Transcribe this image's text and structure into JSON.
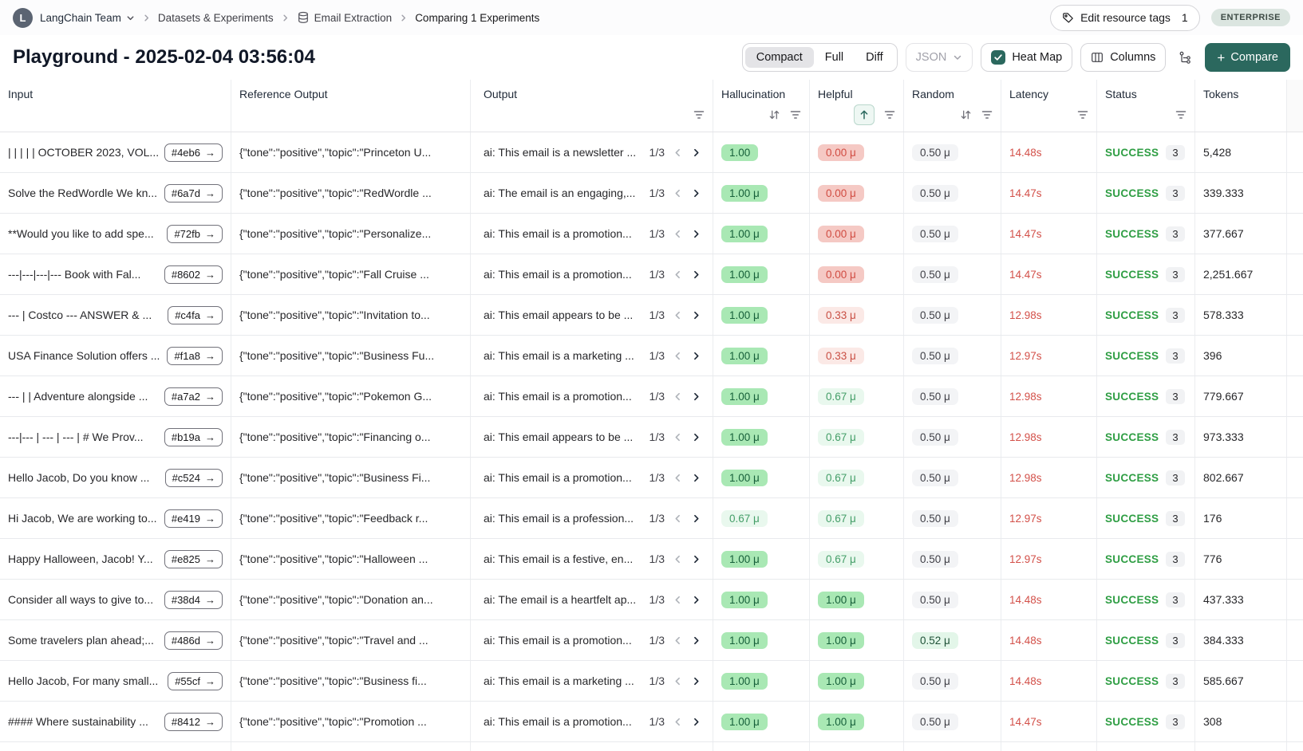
{
  "colors": {
    "accent_teal": "#2b685e",
    "success_green": "#2f9e44",
    "latency_red": "#d35049",
    "pill_green_strong_bg": "#a9e8b4",
    "pill_green_light_bg": "#e9f8ee",
    "pill_red_strong_bg": "#f5c9c4",
    "pill_red_light_bg": "#fbe9e6",
    "pill_gray_bg": "#f3f4f6",
    "plan_badge_bg": "#dbe5e0"
  },
  "breadcrumb": {
    "team": "LangChain Team",
    "avatar_letter": "L",
    "items": [
      "Datasets & Experiments",
      "Email Extraction",
      "Comparing 1 Experiments"
    ]
  },
  "topbar": {
    "edit_tags_label": "Edit resource tags",
    "edit_tags_count": "1",
    "plan_badge": "ENTERPRISE"
  },
  "header": {
    "title": "Playground - 2025-02-04 03:56:04",
    "view_modes": [
      "Compact",
      "Full",
      "Diff"
    ],
    "selected_view": "Compact",
    "json_label": "JSON",
    "heatmap_label": "Heat Map",
    "columns_label": "Columns",
    "compare_label": "Compare"
  },
  "table": {
    "columns": [
      {
        "key": "input",
        "label": "Input",
        "icons": []
      },
      {
        "key": "ref",
        "label": "Reference Output",
        "icons": []
      },
      {
        "key": "output",
        "label": "Output",
        "icons": [
          "filter"
        ]
      },
      {
        "key": "hall",
        "label": "Hallucination",
        "icons": [
          "sort",
          "filter"
        ]
      },
      {
        "key": "helpful",
        "label": "Helpful",
        "icons": [
          "sort-asc",
          "filter"
        ]
      },
      {
        "key": "random",
        "label": "Random",
        "icons": [
          "sort",
          "filter"
        ]
      },
      {
        "key": "latency",
        "label": "Latency",
        "icons": [
          "filter"
        ]
      },
      {
        "key": "status",
        "label": "Status",
        "icons": [
          "filter"
        ]
      },
      {
        "key": "tokens",
        "label": "Tokens",
        "icons": []
      }
    ],
    "rows": [
      {
        "input": "| | | | | OCTOBER 2023, VOL...",
        "id": "#4eb6",
        "reference_output": "{\"tone\":\"positive\",\"topic\":\"Princeton U...",
        "output": "ai: This email is a newsletter ...",
        "pager": "1/3",
        "hallucination": {
          "value": "1.00",
          "level": "g3"
        },
        "helpful": {
          "value": "0.00 μ",
          "level": "r3"
        },
        "random": {
          "value": "0.50 μ",
          "level": "gray"
        },
        "latency": "14.48s",
        "status": "SUCCESS",
        "runs": "3",
        "tokens": "5,428"
      },
      {
        "input": "Solve the RedWordle We kn...",
        "id": "#6a7d",
        "reference_output": "{\"tone\":\"positive\",\"topic\":\"RedWordle ...",
        "output": "ai: The email is an engaging,...",
        "pager": "1/3",
        "hallucination": {
          "value": "1.00 μ",
          "level": "g3"
        },
        "helpful": {
          "value": "0.00 μ",
          "level": "r3"
        },
        "random": {
          "value": "0.50 μ",
          "level": "gray"
        },
        "latency": "14.47s",
        "status": "SUCCESS",
        "runs": "3",
        "tokens": "339.333"
      },
      {
        "input": "**Would you like to add spe...",
        "id": "#72fb",
        "reference_output": "{\"tone\":\"positive\",\"topic\":\"Personalize...",
        "output": "ai: This email is a promotion...",
        "pager": "1/3",
        "hallucination": {
          "value": "1.00 μ",
          "level": "g3"
        },
        "helpful": {
          "value": "0.00 μ",
          "level": "r3"
        },
        "random": {
          "value": "0.50 μ",
          "level": "gray"
        },
        "latency": "14.47s",
        "status": "SUCCESS",
        "runs": "3",
        "tokens": "377.667"
      },
      {
        "input": "---|---|---|--- Book with Fal...",
        "id": "#8602",
        "reference_output": "{\"tone\":\"positive\",\"topic\":\"Fall Cruise ...",
        "output": "ai: This email is a promotion...",
        "pager": "1/3",
        "hallucination": {
          "value": "1.00 μ",
          "level": "g3"
        },
        "helpful": {
          "value": "0.00 μ",
          "level": "r3"
        },
        "random": {
          "value": "0.50 μ",
          "level": "gray"
        },
        "latency": "14.47s",
        "status": "SUCCESS",
        "runs": "3",
        "tokens": "2,251.667"
      },
      {
        "input": "--- | Costco --- ANSWER & ...",
        "id": "#c4fa",
        "reference_output": "{\"tone\":\"positive\",\"topic\":\"Invitation to...",
        "output": "ai: This email appears to be ...",
        "pager": "1/3",
        "hallucination": {
          "value": "1.00 μ",
          "level": "g3"
        },
        "helpful": {
          "value": "0.33 μ",
          "level": "r1"
        },
        "random": {
          "value": "0.50 μ",
          "level": "gray"
        },
        "latency": "12.98s",
        "status": "SUCCESS",
        "runs": "3",
        "tokens": "578.333"
      },
      {
        "input": "USA Finance Solution offers ...",
        "id": "#f1a8",
        "reference_output": "{\"tone\":\"positive\",\"topic\":\"Business Fu...",
        "output": "ai: This email is a marketing ...",
        "pager": "1/3",
        "hallucination": {
          "value": "1.00 μ",
          "level": "g3"
        },
        "helpful": {
          "value": "0.33 μ",
          "level": "r1"
        },
        "random": {
          "value": "0.50 μ",
          "level": "gray"
        },
        "latency": "12.97s",
        "status": "SUCCESS",
        "runs": "3",
        "tokens": "396"
      },
      {
        "input": "--- | | Adventure alongside ...",
        "id": "#a7a2",
        "reference_output": "{\"tone\":\"positive\",\"topic\":\"Pokemon G...",
        "output": "ai: This email is a promotion...",
        "pager": "1/3",
        "hallucination": {
          "value": "1.00 μ",
          "level": "g3"
        },
        "helpful": {
          "value": "0.67 μ",
          "level": "g1"
        },
        "random": {
          "value": "0.50 μ",
          "level": "gray"
        },
        "latency": "12.98s",
        "status": "SUCCESS",
        "runs": "3",
        "tokens": "779.667"
      },
      {
        "input": "---|--- | --- | --- | # We Prov...",
        "id": "#b19a",
        "reference_output": "{\"tone\":\"positive\",\"topic\":\"Financing o...",
        "output": "ai: This email appears to be ...",
        "pager": "1/3",
        "hallucination": {
          "value": "1.00 μ",
          "level": "g3"
        },
        "helpful": {
          "value": "0.67 μ",
          "level": "g1"
        },
        "random": {
          "value": "0.50 μ",
          "level": "gray"
        },
        "latency": "12.98s",
        "status": "SUCCESS",
        "runs": "3",
        "tokens": "973.333"
      },
      {
        "input": "Hello Jacob, Do you know ...",
        "id": "#c524",
        "reference_output": "{\"tone\":\"positive\",\"topic\":\"Business Fi...",
        "output": "ai: This email is a promotion...",
        "pager": "1/3",
        "hallucination": {
          "value": "1.00 μ",
          "level": "g3"
        },
        "helpful": {
          "value": "0.67 μ",
          "level": "g1"
        },
        "random": {
          "value": "0.50 μ",
          "level": "gray"
        },
        "latency": "12.98s",
        "status": "SUCCESS",
        "runs": "3",
        "tokens": "802.667"
      },
      {
        "input": "Hi Jacob, We are working to...",
        "id": "#e419",
        "reference_output": "{\"tone\":\"positive\",\"topic\":\"Feedback r...",
        "output": "ai: This email is a profession...",
        "pager": "1/3",
        "hallucination": {
          "value": "0.67 μ",
          "level": "g1"
        },
        "helpful": {
          "value": "0.67 μ",
          "level": "g1"
        },
        "random": {
          "value": "0.50 μ",
          "level": "gray"
        },
        "latency": "12.97s",
        "status": "SUCCESS",
        "runs": "3",
        "tokens": "176"
      },
      {
        "input": "Happy Halloween, Jacob! Y...",
        "id": "#e825",
        "reference_output": "{\"tone\":\"positive\",\"topic\":\"Halloween ...",
        "output": "ai: This email is a festive, en...",
        "pager": "1/3",
        "hallucination": {
          "value": "1.00 μ",
          "level": "g3"
        },
        "helpful": {
          "value": "0.67 μ",
          "level": "g1"
        },
        "random": {
          "value": "0.50 μ",
          "level": "gray"
        },
        "latency": "12.97s",
        "status": "SUCCESS",
        "runs": "3",
        "tokens": "776"
      },
      {
        "input": "Consider all ways to give to...",
        "id": "#38d4",
        "reference_output": "{\"tone\":\"positive\",\"topic\":\"Donation an...",
        "output": "ai: The email is a heartfelt ap...",
        "pager": "1/3",
        "hallucination": {
          "value": "1.00 μ",
          "level": "g3"
        },
        "helpful": {
          "value": "1.00 μ",
          "level": "g3"
        },
        "random": {
          "value": "0.50 μ",
          "level": "gray"
        },
        "latency": "14.48s",
        "status": "SUCCESS",
        "runs": "3",
        "tokens": "437.333"
      },
      {
        "input": "Some travelers plan ahead;...",
        "id": "#486d",
        "reference_output": "{\"tone\":\"positive\",\"topic\":\"Travel and ...",
        "output": "ai: This email is a promotion...",
        "pager": "1/3",
        "hallucination": {
          "value": "1.00 μ",
          "level": "g3"
        },
        "helpful": {
          "value": "1.00 μ",
          "level": "g3"
        },
        "random": {
          "value": "0.52 μ",
          "level": "g2"
        },
        "latency": "14.48s",
        "status": "SUCCESS",
        "runs": "3",
        "tokens": "384.333"
      },
      {
        "input": "Hello Jacob, For many small...",
        "id": "#55cf",
        "reference_output": "{\"tone\":\"positive\",\"topic\":\"Business fi...",
        "output": "ai: This email is a marketing ...",
        "pager": "1/3",
        "hallucination": {
          "value": "1.00 μ",
          "level": "g3"
        },
        "helpful": {
          "value": "1.00 μ",
          "level": "g3"
        },
        "random": {
          "value": "0.50 μ",
          "level": "gray"
        },
        "latency": "14.48s",
        "status": "SUCCESS",
        "runs": "3",
        "tokens": "585.667"
      },
      {
        "input": "#### Where sustainability ...",
        "id": "#8412",
        "reference_output": "{\"tone\":\"positive\",\"topic\":\"Promotion ...",
        "output": "ai: This email is a promotion...",
        "pager": "1/3",
        "hallucination": {
          "value": "1.00 μ",
          "level": "g3"
        },
        "helpful": {
          "value": "1.00 μ",
          "level": "g3"
        },
        "random": {
          "value": "0.50 μ",
          "level": "gray"
        },
        "latency": "14.47s",
        "status": "SUCCESS",
        "runs": "3",
        "tokens": "308"
      }
    ]
  }
}
